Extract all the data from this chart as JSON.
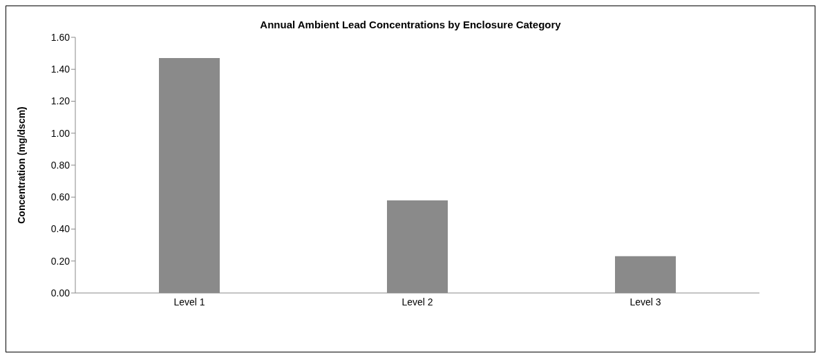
{
  "chart_data": {
    "type": "bar",
    "title": "Annual Ambient Lead Concentrations by Enclosure Category",
    "ylabel": "Concentration (mg/dscm)",
    "categories": [
      "Level 1",
      "Level 2",
      "Level 3"
    ],
    "values": [
      1.47,
      0.58,
      0.23
    ],
    "color": "#8a8a8a",
    "ylim": [
      0,
      1.6
    ],
    "yticks": [
      {
        "value": 0,
        "label": "0.00"
      },
      {
        "value": 0.2,
        "label": "0.20"
      },
      {
        "value": 0.4,
        "label": "0.40"
      },
      {
        "value": 0.6,
        "label": "0.60"
      },
      {
        "value": 0.8,
        "label": "0.80"
      },
      {
        "value": 1,
        "label": "1.00"
      },
      {
        "value": 1.2,
        "label": "1.20"
      },
      {
        "value": 1.4,
        "label": "1.40"
      },
      {
        "value": 1.6,
        "label": "1.60"
      }
    ],
    "grid": false,
    "legend": false
  }
}
